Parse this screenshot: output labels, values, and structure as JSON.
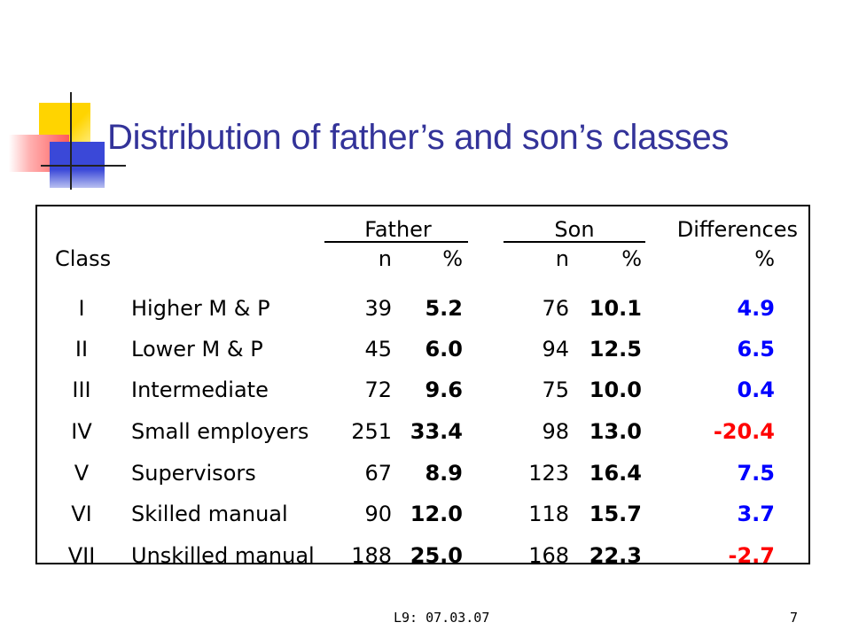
{
  "title": "Distribution of father’s and son’s classes",
  "table": {
    "group_headers": {
      "father": "Father",
      "son": "Son",
      "differences": "Differences"
    },
    "sub_headers": {
      "class": "Class",
      "father_n": "n",
      "father_pct": "%",
      "son_n": "n",
      "son_pct": "%",
      "diff_pct": "%"
    },
    "rows": [
      {
        "class": "I",
        "label": "Higher M & P",
        "father_n": "39",
        "father_pct": "5.2",
        "son_n": "76",
        "son_pct": "10.1",
        "diff": "4.9",
        "diff_color": "#0000ff"
      },
      {
        "class": "II",
        "label": "Lower M & P",
        "father_n": "45",
        "father_pct": "6.0",
        "son_n": "94",
        "son_pct": "12.5",
        "diff": "6.5",
        "diff_color": "#0000ff"
      },
      {
        "class": "III",
        "label": "Intermediate",
        "father_n": "72",
        "father_pct": "9.6",
        "son_n": "75",
        "son_pct": "10.0",
        "diff": "0.4",
        "diff_color": "#0000ff"
      },
      {
        "class": "IV",
        "label": "Small employers",
        "father_n": "251",
        "father_pct": "33.4",
        "son_n": "98",
        "son_pct": "13.0",
        "diff": "-20.4",
        "diff_color": "#ff0000"
      },
      {
        "class": "V",
        "label": "Supervisors",
        "father_n": "67",
        "father_pct": "8.9",
        "son_n": "123",
        "son_pct": "16.4",
        "diff": "7.5",
        "diff_color": "#0000ff"
      },
      {
        "class": "VI",
        "label": "Skilled manual",
        "father_n": "90",
        "father_pct": "12.0",
        "son_n": "118",
        "son_pct": "15.7",
        "diff": "3.7",
        "diff_color": "#0000ff"
      },
      {
        "class": "VII",
        "label": "Unskilled manual",
        "father_n": "188",
        "father_pct": "25.0",
        "son_n": "168",
        "son_pct": "22.3",
        "diff": "-2.7",
        "diff_color": "#ff0000"
      }
    ]
  },
  "footer": {
    "label": "L9: 07.03.07",
    "page_number": "7"
  },
  "colors": {
    "title": "#333399",
    "positive": "#0000ff",
    "negative": "#ff0000"
  },
  "icons": [
    "decorative-squares-icon"
  ]
}
